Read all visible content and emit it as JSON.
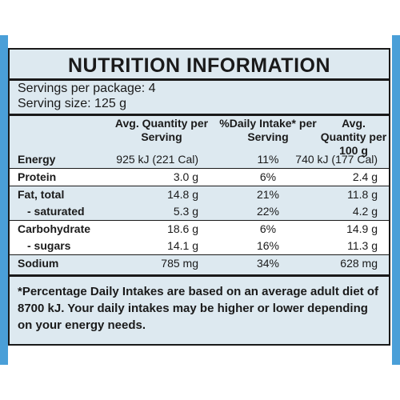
{
  "title": "NUTRITION INFORMATION",
  "servings_per_package": "Servings per package: 4",
  "serving_size": "Serving size: 125 g",
  "headers": {
    "col1": "Avg. Quantity per Serving",
    "col2": "%Daily Intake* per Serving",
    "col3": "Avg. Quantity per 100 g"
  },
  "rows": [
    {
      "name": "Energy",
      "per_serving": "925 kJ (221 Cal)",
      "daily_intake": "11%",
      "per_100g": "740 kJ (177 Cal)"
    },
    {
      "name": "Protein",
      "per_serving": "3.0 g",
      "daily_intake": "6%",
      "per_100g": "2.4 g"
    },
    {
      "name": "Fat, total",
      "per_serving": "14.8 g",
      "daily_intake": "21%",
      "per_100g": "11.8 g"
    },
    {
      "name": "- saturated",
      "per_serving": "5.3 g",
      "daily_intake": "22%",
      "per_100g": "4.2 g"
    },
    {
      "name": "Carbohydrate",
      "per_serving": "18.6 g",
      "daily_intake": "6%",
      "per_100g": "14.9 g"
    },
    {
      "name": "- sugars",
      "per_serving": "14.1 g",
      "daily_intake": "16%",
      "per_100g": "11.3 g"
    },
    {
      "name": "Sodium",
      "per_serving": "785 mg",
      "daily_intake": "34%",
      "per_100g": "628 mg"
    }
  ],
  "footnote": "*Percentage Daily Intakes are based on an average adult diet of 8700 kJ. Your daily intakes may be higher or lower depending on your energy needs.",
  "colors": {
    "label_bg": "#dde9f0",
    "band": "#4a9fd8",
    "text": "#1a1a1a"
  }
}
